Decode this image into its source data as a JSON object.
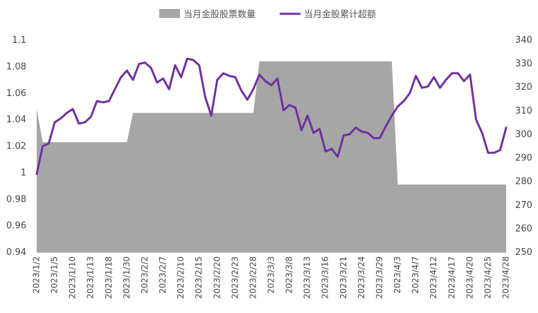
{
  "chart_data": {
    "type": "line",
    "title": "",
    "x_dates": [
      "2023/1/2",
      "2023/1/3",
      "2023/1/4",
      "2023/1/5",
      "2023/1/6",
      "2023/1/9",
      "2023/1/10",
      "2023/1/11",
      "2023/1/12",
      "2023/1/13",
      "2023/1/16",
      "2023/1/17",
      "2023/1/18",
      "2023/1/19",
      "2023/1/20",
      "2023/1/30",
      "2023/1/31",
      "2023/2/1",
      "2023/2/2",
      "2023/2/3",
      "2023/2/6",
      "2023/2/7",
      "2023/2/8",
      "2023/2/9",
      "2023/2/10",
      "2023/2/13",
      "2023/2/14",
      "2023/2/15",
      "2023/2/16",
      "2023/2/17",
      "2023/2/20",
      "2023/2/21",
      "2023/2/22",
      "2023/2/23",
      "2023/2/24",
      "2023/2/27",
      "2023/2/28",
      "2023/3/1",
      "2023/3/2",
      "2023/3/3",
      "2023/3/6",
      "2023/3/7",
      "2023/3/8",
      "2023/3/9",
      "2023/3/10",
      "2023/3/13",
      "2023/3/14",
      "2023/3/15",
      "2023/3/16",
      "2023/3/17",
      "2023/3/20",
      "2023/3/21",
      "2023/3/22",
      "2023/3/23",
      "2023/3/24",
      "2023/3/27",
      "2023/3/28",
      "2023/3/29",
      "2023/3/30",
      "2023/3/31",
      "2023/4/3",
      "2023/4/4",
      "2023/4/6",
      "2023/4/7",
      "2023/4/10",
      "2023/4/11",
      "2023/4/12",
      "2023/4/13",
      "2023/4/14",
      "2023/4/17",
      "2023/4/18",
      "2023/4/19",
      "2023/4/20",
      "2023/4/21",
      "2023/4/24",
      "2023/4/25",
      "2023/4/26",
      "2023/4/27",
      "2023/4/28"
    ],
    "x_tick_labels": [
      "2023/1/2",
      "2023/1/5",
      "2023/1/10",
      "2023/1/13",
      "2023/1/18",
      "2023/1/30",
      "2023/2/2",
      "2023/2/7",
      "2023/2/10",
      "2023/2/15",
      "2023/2/20",
      "2023/2/23",
      "2023/2/28",
      "2023/3/3",
      "2023/3/8",
      "2023/3/13",
      "2023/3/16",
      "2023/3/21",
      "2023/3/24",
      "2023/3/29",
      "2023/4/3",
      "2023/4/7",
      "2023/4/12",
      "2023/4/17",
      "2023/4/20",
      "2023/4/25",
      "2023/4/28"
    ],
    "left_axis": {
      "ylim": [
        0.94,
        1.1
      ],
      "ticks": [
        0.94,
        0.96,
        0.98,
        1,
        1.02,
        1.04,
        1.06,
        1.08,
        1.1
      ],
      "tick_labels": [
        "0.94",
        "0.96",
        "0.98",
        "1",
        "1.02",
        "1.04",
        "1.06",
        "1.08",
        "1.1"
      ]
    },
    "right_axis": {
      "ylim": [
        250,
        340
      ],
      "ticks": [
        250,
        260,
        270,
        280,
        290,
        300,
        310,
        320,
        330,
        340
      ],
      "tick_labels": [
        "250",
        "260",
        "270",
        "280",
        "290",
        "300",
        "310",
        "320",
        "330",
        "340"
      ]
    },
    "series": [
      {
        "name": "当月金股股票数量",
        "kind": "area",
        "axis": "left",
        "color": "#a6a6a6",
        "values": [
          1.048,
          1.023,
          1.023,
          1.023,
          1.023,
          1.023,
          1.023,
          1.023,
          1.023,
          1.023,
          1.023,
          1.023,
          1.023,
          1.023,
          1.023,
          1.023,
          1.045,
          1.045,
          1.045,
          1.045,
          1.045,
          1.045,
          1.045,
          1.045,
          1.045,
          1.045,
          1.045,
          1.045,
          1.045,
          1.045,
          1.045,
          1.045,
          1.045,
          1.045,
          1.045,
          1.045,
          1.045,
          1.084,
          1.084,
          1.084,
          1.084,
          1.084,
          1.084,
          1.084,
          1.084,
          1.084,
          1.084,
          1.084,
          1.084,
          1.084,
          1.084,
          1.084,
          1.084,
          1.084,
          1.084,
          1.084,
          1.084,
          1.084,
          1.084,
          1.084,
          0.991,
          0.991,
          0.991,
          0.991,
          0.991,
          0.991,
          0.991,
          0.991,
          0.991,
          0.991,
          0.991,
          0.991,
          0.991,
          0.991,
          0.991,
          0.991,
          0.991,
          0.991,
          0.991
        ]
      },
      {
        "name": "当月金股累计超额",
        "kind": "line",
        "axis": "left",
        "color": "#7030a0",
        "values": [
          0.999,
          1.02,
          1.022,
          1.038,
          1.041,
          1.045,
          1.048,
          1.037,
          1.038,
          1.042,
          1.054,
          1.053,
          1.054,
          1.063,
          1.072,
          1.077,
          1.07,
          1.082,
          1.083,
          1.079,
          1.068,
          1.071,
          1.063,
          1.081,
          1.072,
          1.086,
          1.085,
          1.081,
          1.057,
          1.043,
          1.07,
          1.075,
          1.073,
          1.072,
          1.062,
          1.055,
          1.063,
          1.074,
          1.069,
          1.066,
          1.071,
          1.047,
          1.051,
          1.049,
          1.032,
          1.043,
          1.03,
          1.033,
          1.016,
          1.018,
          1.012,
          1.028,
          1.029,
          1.034,
          1.031,
          1.03,
          1.026,
          1.026,
          1.035,
          1.043,
          1.05,
          1.054,
          1.06,
          1.073,
          1.064,
          1.065,
          1.072,
          1.064,
          1.07,
          1.075,
          1.075,
          1.069,
          1.074,
          1.04,
          1.03,
          1.015,
          1.015,
          1.017,
          1.034
        ]
      }
    ],
    "legend_position": "top-center",
    "grid": false
  }
}
